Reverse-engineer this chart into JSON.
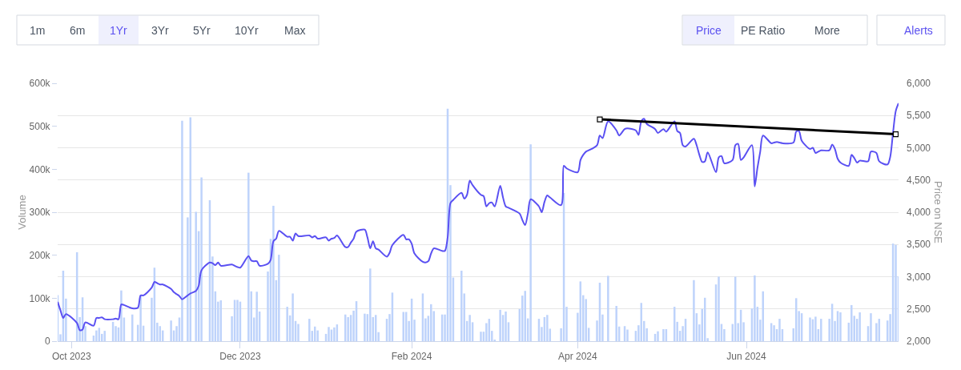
{
  "chart_data": {
    "type": "bar",
    "x": [
      "2023-09-26",
      "2023-09-27",
      "2023-09-28",
      "2023-09-29",
      "2023-10-03",
      "2023-10-04",
      "2023-10-05",
      "2023-10-06",
      "2023-10-09",
      "2023-10-10",
      "2023-10-11",
      "2023-10-12",
      "2023-10-13",
      "2023-10-16",
      "2023-10-17",
      "2023-10-18",
      "2023-10-19",
      "2023-10-20",
      "2023-10-23",
      "2023-10-25",
      "2023-10-26",
      "2023-10-27",
      "2023-10-30",
      "2023-10-31",
      "2023-11-01",
      "2023-11-02",
      "2023-11-03",
      "2023-11-06",
      "2023-11-07",
      "2023-11-08",
      "2023-11-09",
      "2023-11-10",
      "2023-11-12",
      "2023-11-13",
      "2023-11-15",
      "2023-11-16",
      "2023-11-17",
      "2023-11-20",
      "2023-11-21",
      "2023-11-22",
      "2023-11-23",
      "2023-11-24",
      "2023-11-28",
      "2023-11-29",
      "2023-11-30",
      "2023-12-01",
      "2023-12-04",
      "2023-12-05",
      "2023-12-06",
      "2023-12-07",
      "2023-12-08",
      "2023-12-11",
      "2023-12-12",
      "2023-12-13",
      "2023-12-14",
      "2023-12-15",
      "2023-12-18",
      "2023-12-19",
      "2023-12-20",
      "2023-12-21",
      "2023-12-22",
      "2023-12-26",
      "2023-12-27",
      "2023-12-28",
      "2023-12-29",
      "2024-01-01",
      "2024-01-02",
      "2024-01-03",
      "2024-01-04",
      "2024-01-05",
      "2024-01-08",
      "2024-01-09",
      "2024-01-10",
      "2024-01-11",
      "2024-01-12",
      "2024-01-15",
      "2024-01-16",
      "2024-01-17",
      "2024-01-18",
      "2024-01-19",
      "2024-01-20",
      "2024-01-23",
      "2024-01-24",
      "2024-01-25",
      "2024-01-29",
      "2024-01-30",
      "2024-01-31",
      "2024-02-01",
      "2024-02-02",
      "2024-02-05",
      "2024-02-06",
      "2024-02-07",
      "2024-02-08",
      "2024-02-09",
      "2024-02-12",
      "2024-02-13",
      "2024-02-14",
      "2024-02-15",
      "2024-02-16",
      "2024-02-19",
      "2024-02-20",
      "2024-02-21",
      "2024-02-22",
      "2024-02-23",
      "2024-02-26",
      "2024-02-27",
      "2024-02-28",
      "2024-02-29",
      "2024-03-01",
      "2024-03-02",
      "2024-03-04",
      "2024-03-05",
      "2024-03-06",
      "2024-03-07",
      "2024-03-11",
      "2024-03-12",
      "2024-03-13",
      "2024-03-14",
      "2024-03-15",
      "2024-03-18",
      "2024-03-19",
      "2024-03-20",
      "2024-03-21",
      "2024-03-22",
      "2024-03-26",
      "2024-03-27",
      "2024-03-28",
      "2024-04-01",
      "2024-04-02",
      "2024-04-03",
      "2024-04-04",
      "2024-04-05",
      "2024-04-08",
      "2024-04-09",
      "2024-04-10",
      "2024-04-12",
      "2024-04-15",
      "2024-04-16",
      "2024-04-18",
      "2024-04-19",
      "2024-04-22",
      "2024-04-23",
      "2024-04-24",
      "2024-04-25",
      "2024-04-26",
      "2024-04-29",
      "2024-04-30",
      "2024-05-02",
      "2024-05-03",
      "2024-05-06",
      "2024-05-07",
      "2024-05-08",
      "2024-05-09",
      "2024-05-10",
      "2024-05-13",
      "2024-05-14",
      "2024-05-15",
      "2024-05-16",
      "2024-05-17",
      "2024-05-18",
      "2024-05-21",
      "2024-05-22",
      "2024-05-23",
      "2024-05-24",
      "2024-05-27",
      "2024-05-28",
      "2024-05-29",
      "2024-05-30",
      "2024-05-31",
      "2024-06-03",
      "2024-06-04",
      "2024-06-05",
      "2024-06-06",
      "2024-06-07",
      "2024-06-10",
      "2024-06-11",
      "2024-06-12",
      "2024-06-13",
      "2024-06-14",
      "2024-06-18",
      "2024-06-19",
      "2024-06-20",
      "2024-06-21",
      "2024-06-24",
      "2024-06-25",
      "2024-06-26",
      "2024-06-27",
      "2024-06-28",
      "2024-07-01",
      "2024-07-02",
      "2024-07-03",
      "2024-07-04",
      "2024-07-05",
      "2024-07-08",
      "2024-07-09",
      "2024-07-10",
      "2024-07-11",
      "2024-07-12",
      "2024-07-15",
      "2024-07-16",
      "2024-07-18",
      "2024-07-19",
      "2024-07-22",
      "2024-07-23",
      "2024-07-24",
      "2024-07-25",
      "2024-07-26"
    ],
    "series": [
      {
        "color": "#bed3fb",
        "values": [
          107000,
          16000,
          164000,
          99000,
          207000,
          56000,
          102000,
          35000,
          13000,
          25000,
          31000,
          17000,
          24000,
          45000,
          35000,
          32000,
          118000,
          55000,
          62000,
          38000,
          106000,
          36000,
          101000,
          171000,
          43000,
          35000,
          25000,
          48000,
          25000,
          35000,
          55000,
          513000,
          288000,
          521000,
          301000,
          256000,
          381000,
          328000,
          197000,
          116000,
          92000,
          95000,
          58000,
          96000,
          96000,
          92000,
          392000,
          116000,
          55000,
          115000,
          69000,
          162000,
          238000,
          315000,
          142000,
          201000,
          80000,
          60000,
          111000,
          47000,
          40000,
          52000,
          24000,
          34000,
          25000,
          17000,
          33000,
          27000,
          32000,
          39000,
          62000,
          56000,
          61000,
          71000,
          93000,
          64000,
          63000,
          169000,
          56000,
          61000,
          21000,
          52000,
          63000,
          113000,
          68000,
          68000,
          47000,
          99000,
          50000,
          111000,
          53000,
          59000,
          86000,
          70000,
          62000,
          62000,
          541000,
          363000,
          148000,
          164000,
          111000,
          47000,
          61000,
          44000,
          22000,
          22000,
          42000,
          52000,
          24000,
          3000,
          73000,
          61000,
          69000,
          44000,
          75000,
          106000,
          117000,
          53000,
          458000,
          52000,
          33000,
          56000,
          61000,
          29000,
          30000,
          345000,
          80000,
          66000,
          139000,
          107000,
          98000,
          31000,
          48000,
          136000,
          62000,
          152000,
          82000,
          34000,
          35000,
          27000,
          24000,
          37000,
          89000,
          47000,
          30000,
          17000,
          23000,
          28000,
          28000,
          80000,
          45000,
          24000,
          35000,
          52000,
          142000,
          65000,
          39000,
          75000,
          101000,
          7000,
          132000,
          150000,
          40000,
          28000,
          40000,
          150000,
          42000,
          73000,
          44000,
          76000,
          153000,
          80000,
          50000,
          116000,
          42000,
          37000,
          28000,
          52000,
          28000,
          30000,
          100000,
          70000,
          65000,
          55000,
          51000,
          57000,
          28000,
          52000,
          52000,
          87000,
          47000,
          70000,
          67000,
          43000,
          84000,
          59000,
          52000,
          67000,
          35000,
          65000,
          42000,
          52000,
          48000,
          63000,
          227000,
          224000,
          151000
        ]
      },
      {
        "type": "line",
        "axis": "y2",
        "color": "#5a50f2",
        "values": [
          2610,
          2480,
          2360,
          2420,
          2280,
          2170,
          2180,
          2290,
          2240,
          2360,
          2360,
          2370,
          2340,
          2340,
          2350,
          2340,
          2570,
          2560,
          2510,
          2520,
          2710,
          2710,
          2830,
          2920,
          2900,
          2880,
          2880,
          2810,
          2760,
          2730,
          2700,
          2650,
          2710,
          2740,
          2780,
          2860,
          3100,
          3220,
          3210,
          3180,
          3220,
          3170,
          3190,
          3170,
          3150,
          3140,
          3320,
          3250,
          3240,
          3240,
          3170,
          3200,
          3260,
          3550,
          3590,
          3710,
          3620,
          3620,
          3560,
          3670,
          3630,
          3640,
          3610,
          3630,
          3590,
          3610,
          3560,
          3590,
          3600,
          3640,
          3460,
          3460,
          3530,
          3590,
          3700,
          3730,
          3610,
          3440,
          3550,
          3440,
          3420,
          3310,
          3370,
          3490,
          3650,
          3580,
          3580,
          3510,
          3360,
          3230,
          3220,
          3240,
          3360,
          3440,
          3400,
          3400,
          3610,
          4140,
          4190,
          4300,
          4210,
          4270,
          4490,
          4420,
          4270,
          4250,
          4090,
          4140,
          4150,
          4090,
          4410,
          4230,
          4090,
          4070,
          3980,
          3880,
          3800,
          3980,
          4200,
          4090,
          4000,
          4160,
          4260,
          4230,
          4110,
          4720,
          4680,
          4620,
          4810,
          4890,
          4940,
          4960,
          5040,
          5190,
          5150,
          5410,
          5270,
          5190,
          5290,
          5300,
          5270,
          5200,
          5410,
          5450,
          5370,
          5290,
          5230,
          5290,
          5250,
          5410,
          5260,
          5230,
          5040,
          5020,
          5140,
          5040,
          4890,
          4780,
          4790,
          4930,
          4620,
          4850,
          4870,
          4760,
          4810,
          5040,
          5060,
          4810,
          4850,
          5040,
          4400,
          4690,
          4940,
          5190,
          5070,
          5080,
          5090,
          5080,
          5070,
          5080,
          5250,
          5260,
          5110,
          4980,
          5000,
          4920,
          4940,
          4960,
          4960,
          5050,
          4980,
          4830,
          4770,
          4720,
          4890,
          4840,
          4770,
          4800,
          4790,
          4940,
          4920,
          4790,
          4740,
          4860,
          5230,
          5570,
          5690
        ]
      },
      {
        "type": "line",
        "axis": "y2",
        "color": "#000000",
        "marker": "square",
        "x": [
          "2024-04-09",
          "2024-07-25"
        ],
        "values": [
          5440,
          5210
        ]
      }
    ],
    "xlim": [
      "2023-09-26",
      "2024-07-26"
    ],
    "xticks": [
      {
        "value": "2023-10-01",
        "label": "Oct 2023"
      },
      {
        "value": "2023-12-01",
        "label": "Dec 2023"
      },
      {
        "value": "2024-02-01",
        "label": "Feb 2024"
      },
      {
        "value": "2024-04-01",
        "label": "Apr 2024"
      },
      {
        "value": "2024-06-01",
        "label": "Jun 2024"
      }
    ],
    "ylabel": "Volume",
    "ylim": [
      0,
      600000
    ],
    "yticks": [
      0,
      {
        "value": 100000,
        "label": "100k"
      },
      {
        "value": 200000,
        "label": "200k"
      },
      {
        "value": 300000,
        "label": "300k"
      },
      {
        "value": 400000,
        "label": "400k"
      },
      {
        "value": 500000,
        "label": "500k"
      },
      {
        "value": 600000,
        "label": "600k"
      }
    ],
    "y2label": "Price on NSE",
    "y2lim": [
      2000,
      6000
    ],
    "y2ticks": [
      {
        "value": 2000,
        "label": "2,000"
      },
      {
        "value": 2500,
        "label": "2,500"
      },
      {
        "value": 3000,
        "label": "3,000"
      },
      {
        "value": 3500,
        "label": "3,500"
      },
      {
        "value": 4000,
        "label": "4,000"
      },
      {
        "value": 4500,
        "label": "4,500"
      },
      {
        "value": 5000,
        "label": "5,000"
      },
      {
        "value": 5500,
        "label": "5,500"
      },
      {
        "value": 6000,
        "label": "6,000"
      }
    ],
    "grid": "y2",
    "annotations": [
      "1m",
      "6m",
      "1Yr",
      "3Yr",
      "5Yr",
      "10Yr",
      "Max",
      "Price",
      "PE Ratio",
      "More",
      "Alerts"
    ]
  }
}
